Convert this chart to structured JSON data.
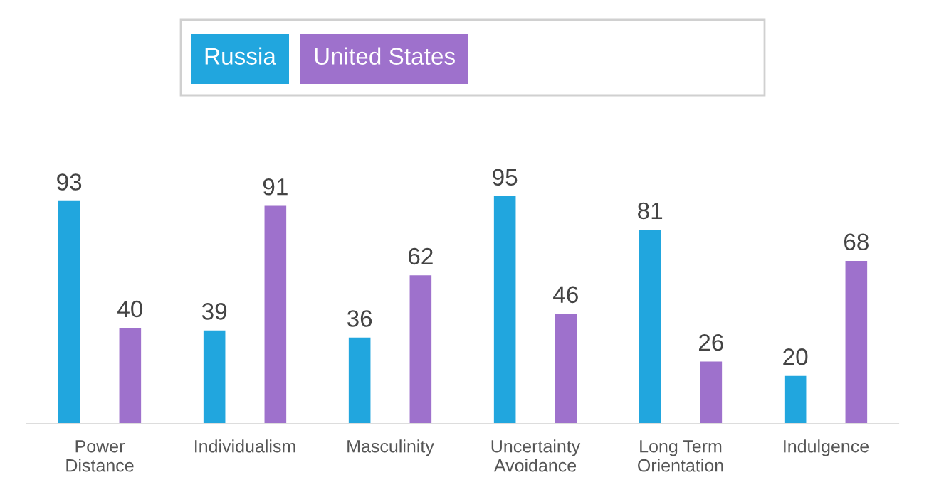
{
  "chart_data": {
    "type": "bar",
    "categories": [
      "Power\nDistance",
      "Individualism",
      "Masculinity",
      "Uncertainty\nAvoidance",
      "Long Term\nOrientation",
      "Indulgence"
    ],
    "series": [
      {
        "name": "Russia",
        "color": "#21a6de",
        "values": [
          93,
          39,
          36,
          95,
          81,
          20
        ]
      },
      {
        "name": "United States",
        "color": "#9e71cc",
        "values": [
          40,
          91,
          62,
          46,
          26,
          68
        ]
      }
    ],
    "data_labels": true,
    "legend": "top",
    "grid": false,
    "tick_labels": "x"
  }
}
